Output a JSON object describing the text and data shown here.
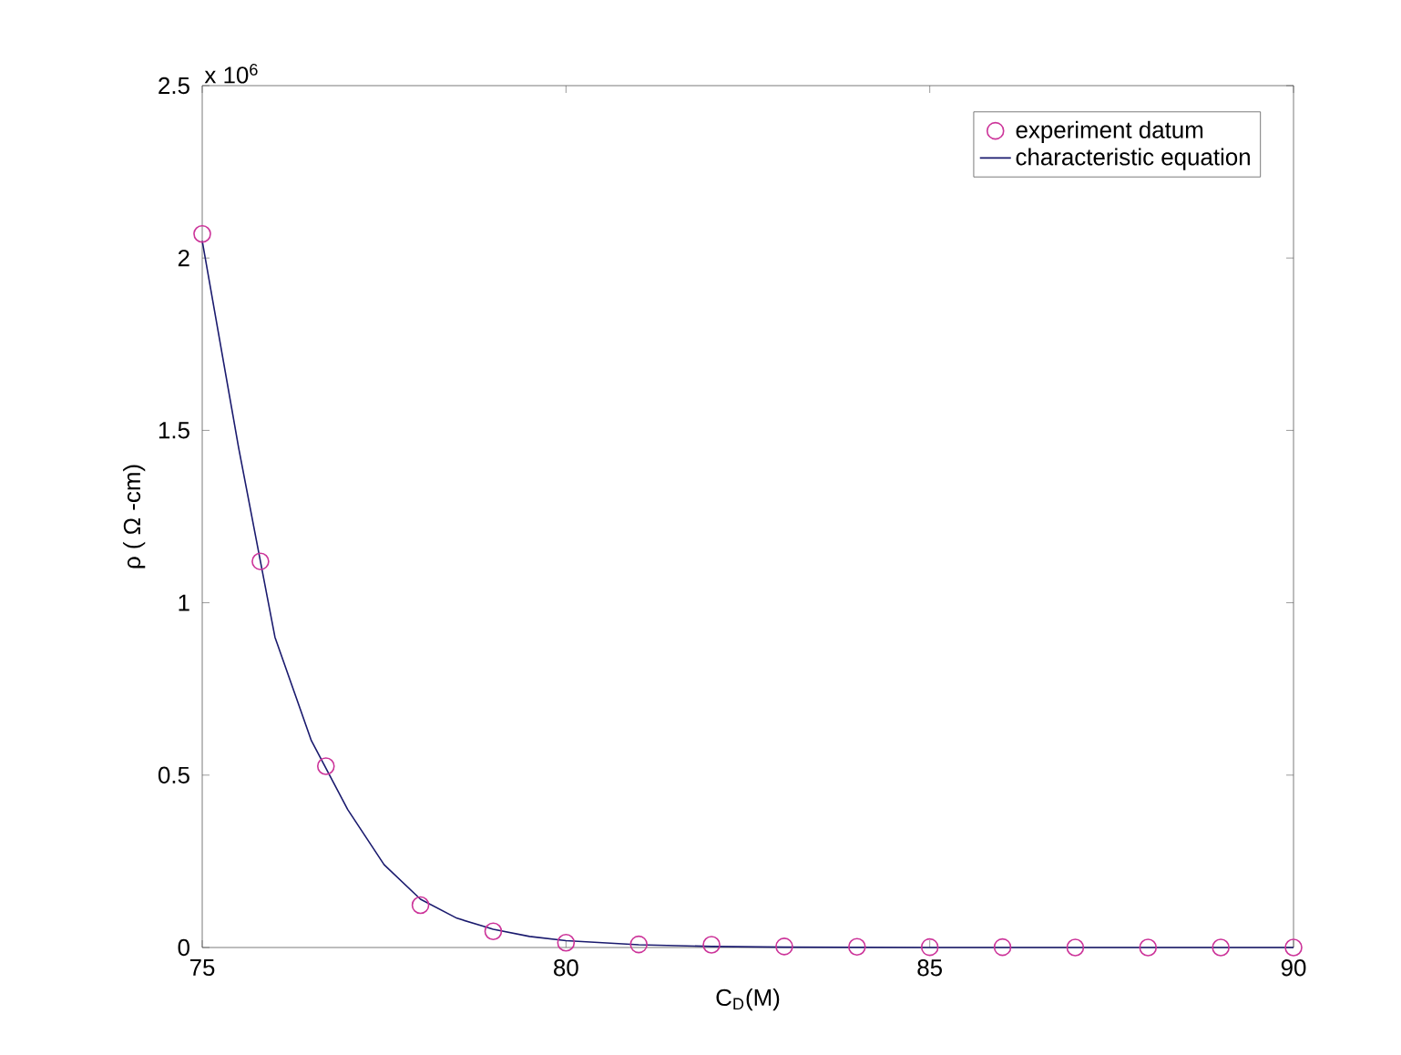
{
  "chart_data": {
    "type": "scatter",
    "xlabel": "C$_{D}$(M)",
    "ylabel": "ρ ( Ω -cm)",
    "annotations": [
      "x 10$^{6}$"
    ],
    "xlim": [
      75,
      90
    ],
    "xticks": [
      75,
      80,
      85,
      90
    ],
    "ylim": [
      0,
      2.5
    ],
    "yticks": [
      0,
      0.5,
      1,
      1.5,
      2,
      2.5
    ],
    "grid": false,
    "legend": "top right",
    "series": [
      {
        "name": "experiment datum",
        "marker": "circle",
        "color": "#cc3399",
        "x": [
          75,
          75.8,
          76.7,
          78,
          79,
          80,
          81,
          82,
          83,
          84,
          85,
          86,
          87,
          88,
          89,
          90
        ],
        "values": [
          2.07,
          1.12,
          0.526,
          0.123,
          0.047,
          0.014,
          0.009,
          0.008,
          0.003,
          0.002,
          0.001,
          0.001,
          0,
          0,
          0,
          0
        ]
      },
      {
        "name": "characteristic equation",
        "type": "line",
        "line_style": "solid",
        "color": "#1a1a6e",
        "x": [
          75,
          75.5,
          76,
          76.5,
          77,
          77.5,
          78,
          78.5,
          79,
          79.5,
          80,
          81,
          82,
          83,
          85,
          90
        ],
        "values": [
          2.05,
          1.45,
          0.9,
          0.6,
          0.4,
          0.24,
          0.14,
          0.085,
          0.053,
          0.032,
          0.02,
          0.008,
          0.003,
          0.001,
          0,
          0
        ]
      }
    ]
  }
}
